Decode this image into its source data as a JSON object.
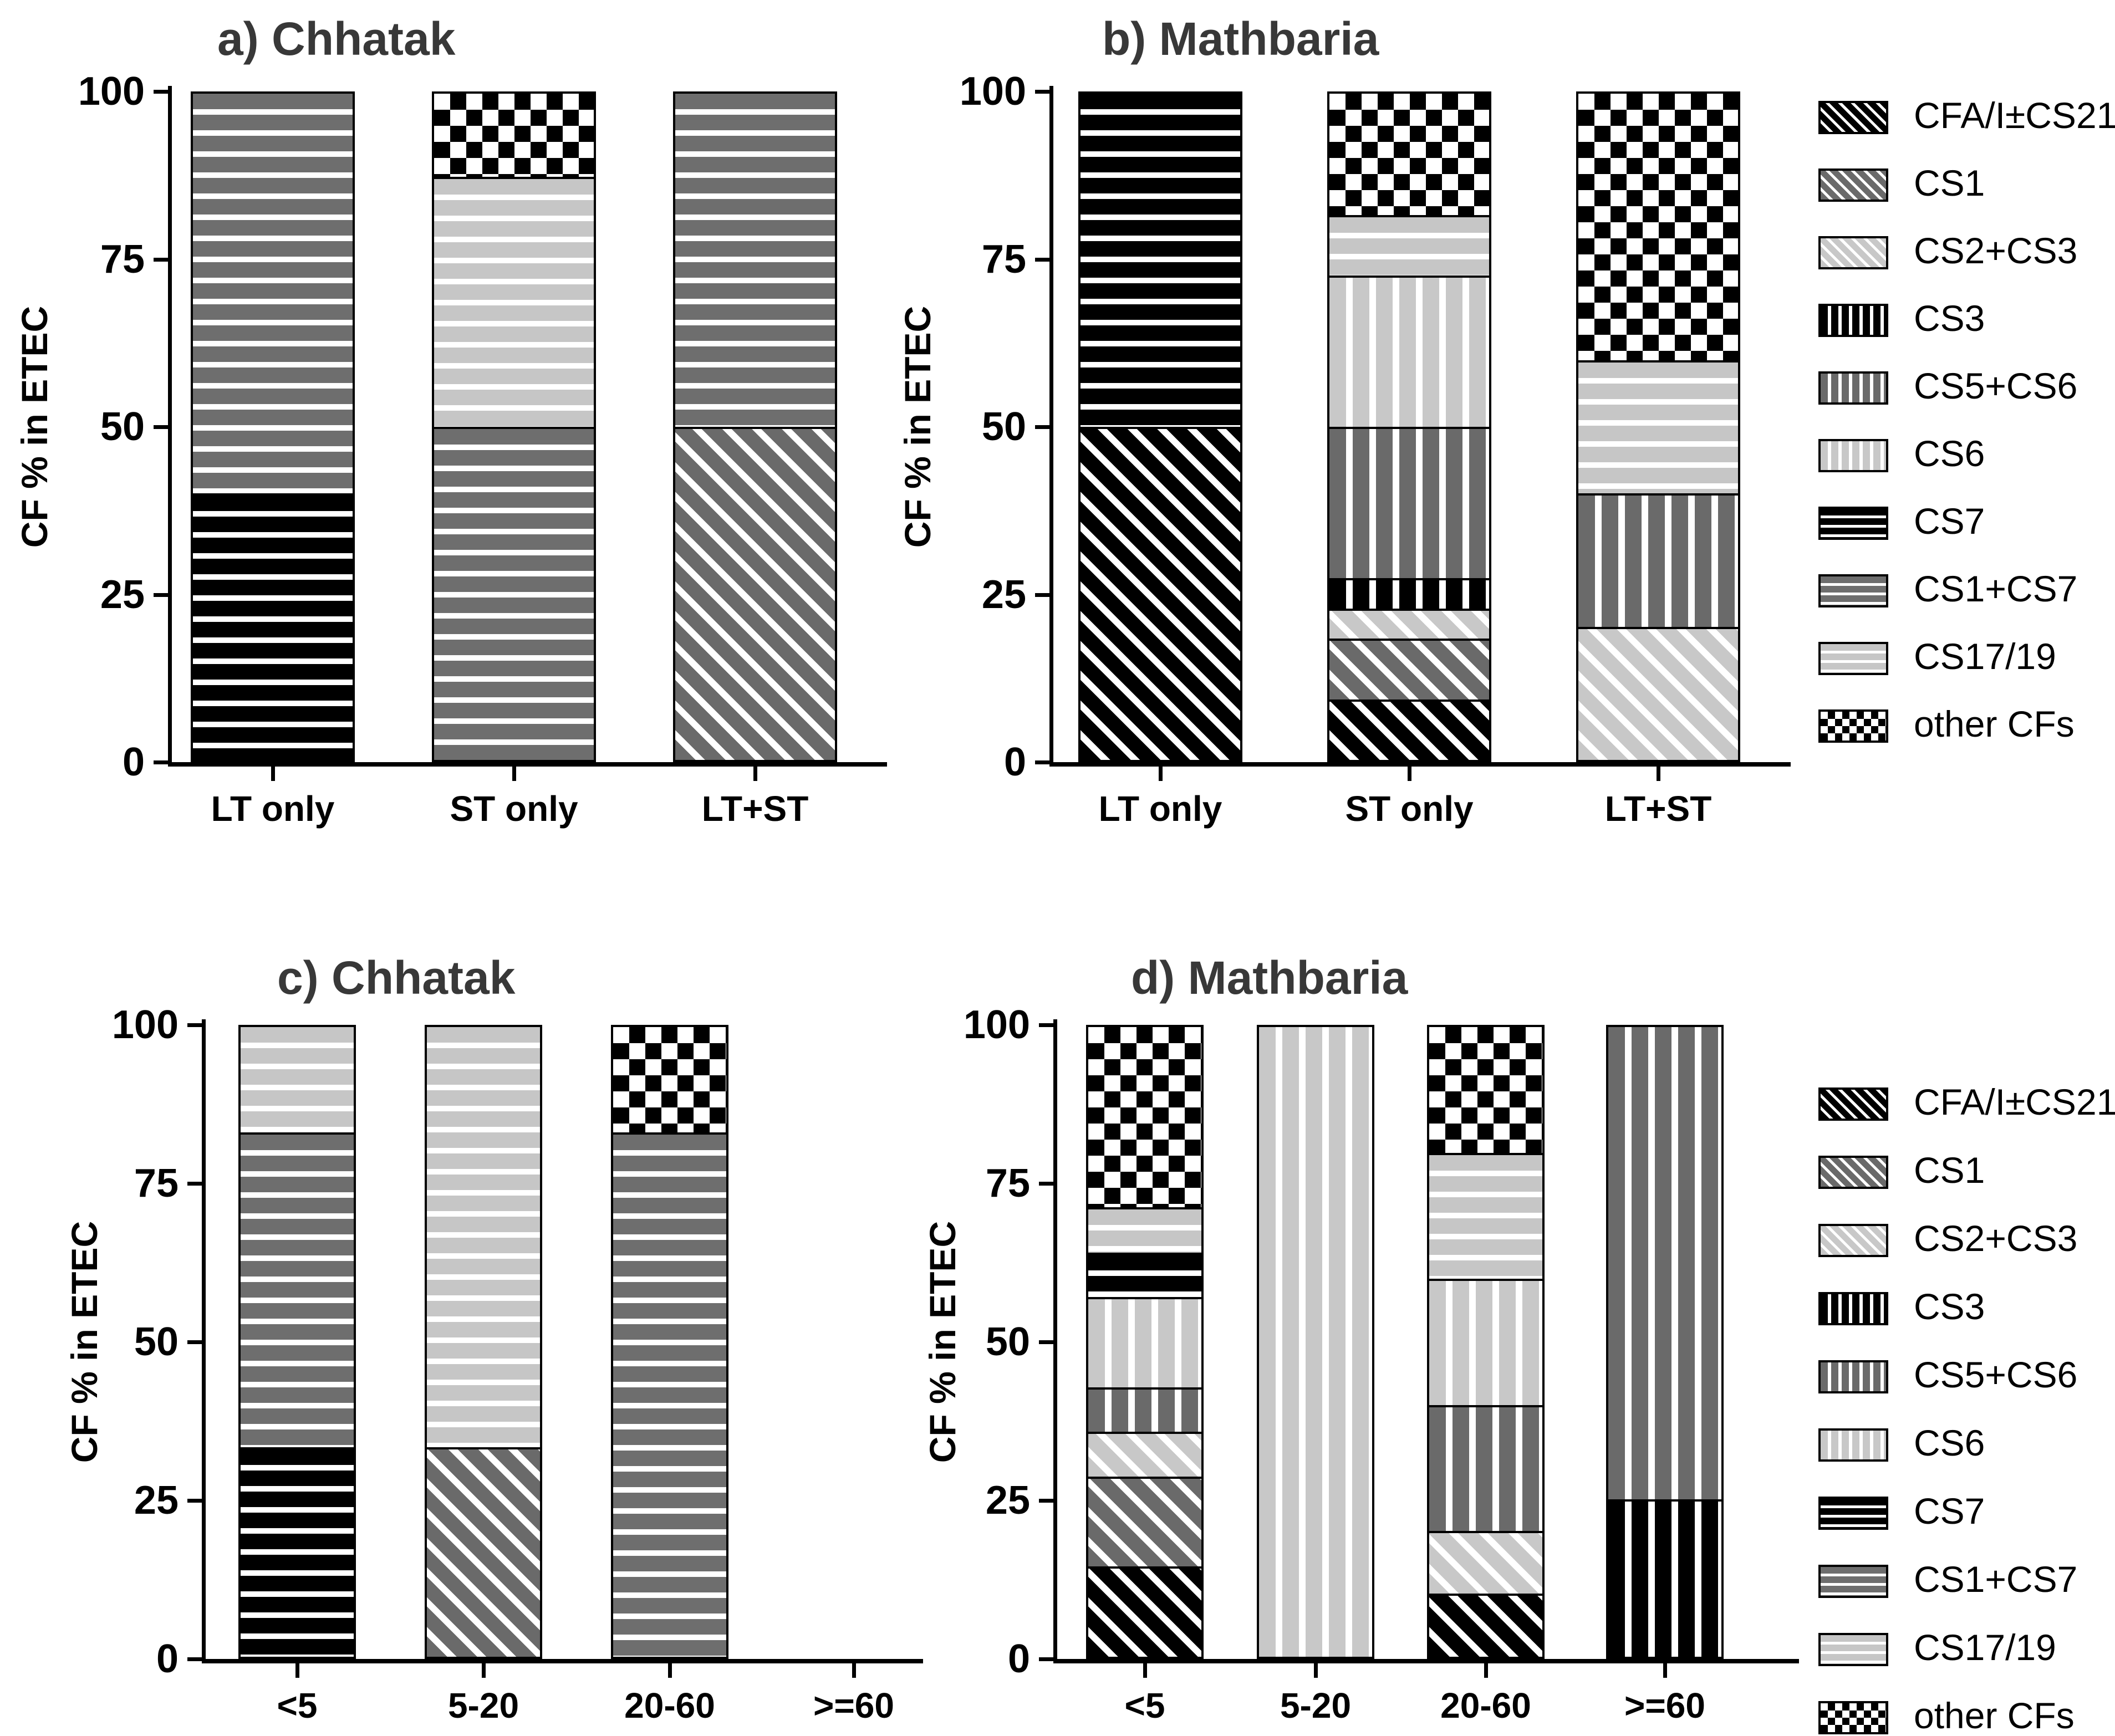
{
  "figure": {
    "background": "#ffffff",
    "ylabel": "CF % in ETEC",
    "yticks": [
      0,
      25,
      50,
      75,
      100
    ],
    "title_color": "#383838",
    "axis_color": "#000000"
  },
  "colors": {
    "black": "#000000",
    "dark_gray": "#6a6a6a",
    "medium_gray": "#6e6e6e",
    "light_gray": "#c8c8c8",
    "white": "#ffffff"
  },
  "legend": {
    "items": [
      {
        "label": "CFA/I±CS21",
        "pattern": "cfa",
        "swatch_icon": "black-diagonal-stripes-icon"
      },
      {
        "label": "CS1",
        "pattern": "cs1",
        "swatch_icon": "gray-diagonal-stripes-icon"
      },
      {
        "label": "CS2+CS3",
        "pattern": "cs2cs3",
        "swatch_icon": "lightgray-diagonal-stripes-icon"
      },
      {
        "label": "CS3",
        "pattern": "cs3",
        "swatch_icon": "black-vertical-stripes-icon"
      },
      {
        "label": "CS5+CS6",
        "pattern": "cs5cs6",
        "swatch_icon": "gray-vertical-stripes-icon"
      },
      {
        "label": "CS6",
        "pattern": "cs6",
        "swatch_icon": "lightgray-vertical-stripes-icon"
      },
      {
        "label": "CS7",
        "pattern": "cs7",
        "swatch_icon": "black-horizontal-stripes-icon"
      },
      {
        "label": "CS1+CS7",
        "pattern": "cs1cs7",
        "swatch_icon": "gray-horizontal-stripes-icon"
      },
      {
        "label": "CS17/19",
        "pattern": "cs1719",
        "swatch_icon": "lightgray-horizontal-stripes-icon"
      },
      {
        "label": "other CFs",
        "pattern": "other",
        "swatch_icon": "checkerboard-icon"
      }
    ]
  },
  "chart_data": [
    {
      "type": "bar",
      "stacked": true,
      "panel": "a",
      "title": "a) Chhatak",
      "ylabel": "CF % in ETEC",
      "ylim": [
        0,
        100
      ],
      "grid": false,
      "categories": [
        "LT only",
        "ST only",
        "LT+ST"
      ],
      "stacks": [
        [
          {
            "cf": "CS7",
            "value": 40
          },
          {
            "cf": "CS1+CS7",
            "value": 60
          }
        ],
        [
          {
            "cf": "CS1+CS7",
            "value": 50
          },
          {
            "cf": "CS17/19",
            "value": 37.5
          },
          {
            "cf": "other CFs",
            "value": 12.5
          }
        ],
        [
          {
            "cf": "CS1",
            "value": 50
          },
          {
            "cf": "CS1+CS7",
            "value": 50
          }
        ]
      ]
    },
    {
      "type": "bar",
      "stacked": true,
      "panel": "b",
      "title": "b) Mathbaria",
      "ylabel": "CF % in ETEC",
      "ylim": [
        0,
        100
      ],
      "grid": false,
      "categories": [
        "LT only",
        "ST only",
        "LT+ST"
      ],
      "stacks": [
        [
          {
            "cf": "CFA/I±CS21",
            "value": 50
          },
          {
            "cf": "CS7",
            "value": 50
          }
        ],
        [
          {
            "cf": "CFA/I±CS21",
            "value": 9.1
          },
          {
            "cf": "CS1",
            "value": 9.1
          },
          {
            "cf": "CS2+CS3",
            "value": 4.5
          },
          {
            "cf": "CS3",
            "value": 4.6
          },
          {
            "cf": "CS5+CS6",
            "value": 22.7
          },
          {
            "cf": "CS6",
            "value": 22.7
          },
          {
            "cf": "CS17/19",
            "value": 9.1
          },
          {
            "cf": "other CFs",
            "value": 18.2
          }
        ],
        [
          {
            "cf": "CS2+CS3",
            "value": 20
          },
          {
            "cf": "CS5+CS6",
            "value": 20
          },
          {
            "cf": "CS17/19",
            "value": 20
          },
          {
            "cf": "other CFs",
            "value": 40
          }
        ]
      ]
    },
    {
      "type": "bar",
      "stacked": true,
      "panel": "c",
      "title": "c) Chhatak",
      "ylabel": "CF % in ETEC",
      "ylim": [
        0,
        100
      ],
      "grid": false,
      "categories": [
        "<5",
        "5-20",
        "20-60",
        ">=60"
      ],
      "stacks": [
        [
          {
            "cf": "CS7",
            "value": 33.3
          },
          {
            "cf": "CS1+CS7",
            "value": 50
          },
          {
            "cf": "CS17/19",
            "value": 16.7
          }
        ],
        [
          {
            "cf": "CS1",
            "value": 33.3
          },
          {
            "cf": "CS17/19",
            "value": 66.7
          }
        ],
        [
          {
            "cf": "CS1+CS7",
            "value": 83.3
          },
          {
            "cf": "other CFs",
            "value": 16.7
          }
        ],
        []
      ]
    },
    {
      "type": "bar",
      "stacked": true,
      "panel": "d",
      "title": "d) Mathbaria",
      "ylabel": "CF % in ETEC",
      "ylim": [
        0,
        100
      ],
      "grid": false,
      "categories": [
        "<5",
        "5-20",
        "20-60",
        ">=60"
      ],
      "stacks": [
        [
          {
            "cf": "CFA/I±CS21",
            "value": 14.3
          },
          {
            "cf": "CS1",
            "value": 14.3
          },
          {
            "cf": "CS2+CS3",
            "value": 7.1
          },
          {
            "cf": "CS5+CS6",
            "value": 7.1
          },
          {
            "cf": "CS6",
            "value": 14.3
          },
          {
            "cf": "CS7",
            "value": 7.1
          },
          {
            "cf": "CS17/19",
            "value": 7.2
          },
          {
            "cf": "other CFs",
            "value": 28.6
          }
        ],
        [
          {
            "cf": "CS6",
            "value": 100
          }
        ],
        [
          {
            "cf": "CFA/I±CS21",
            "value": 10
          },
          {
            "cf": "CS2+CS3",
            "value": 10
          },
          {
            "cf": "CS5+CS6",
            "value": 20
          },
          {
            "cf": "CS6",
            "value": 20
          },
          {
            "cf": "CS17/19",
            "value": 20
          },
          {
            "cf": "other CFs",
            "value": 20
          }
        ],
        [
          {
            "cf": "CS3",
            "value": 25
          },
          {
            "cf": "CS5+CS6",
            "value": 75
          }
        ]
      ]
    }
  ],
  "pattern_map": {
    "CFA/I±CS21": "cfa",
    "CS1": "cs1",
    "CS2+CS3": "cs2cs3",
    "CS3": "cs3",
    "CS5+CS6": "cs5cs6",
    "CS6": "cs6",
    "CS7": "cs7",
    "CS1+CS7": "cs1cs7",
    "CS17/19": "cs1719",
    "other CFs": "other"
  }
}
